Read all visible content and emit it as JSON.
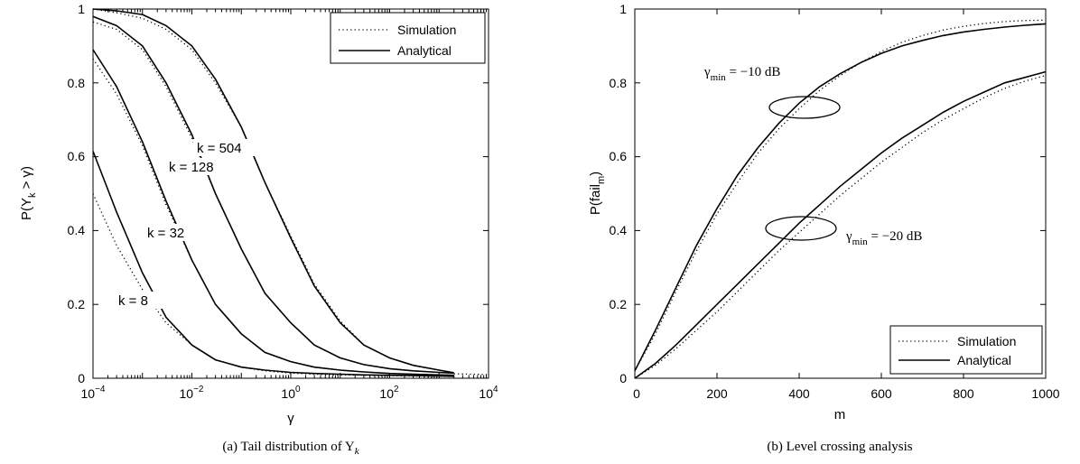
{
  "chart_data": [
    {
      "type": "line",
      "xscale": "log",
      "xlim": [
        0.0001,
        10000
      ],
      "ylim": [
        0,
        1
      ],
      "xlabel": "γ",
      "ylabel": "P(Y_k > γ)",
      "ylabel_parts": {
        "pre": "P(Y",
        "sub": "k",
        "post": " > γ)"
      },
      "x_ticks": [
        {
          "base": "10",
          "exp": "−4"
        },
        {
          "base": "10",
          "exp": "−2"
        },
        {
          "base": "10",
          "exp": "0"
        },
        {
          "base": "10",
          "exp": "2"
        },
        {
          "base": "10",
          "exp": "4"
        }
      ],
      "y_ticks": [
        "0",
        "0.2",
        "0.4",
        "0.6",
        "0.8",
        "1"
      ],
      "caption": "(a) Tail distribution of Y",
      "caption_sub": "k",
      "legend": {
        "position": "top-right",
        "entries": [
          "Simulation",
          "Analytical"
        ]
      },
      "series": [
        {
          "label": "k = 8",
          "x": [
            0.0001,
            0.0003,
            0.001,
            0.003,
            0.01,
            0.03,
            0.1,
            0.3,
            1,
            3,
            10,
            30,
            100,
            300,
            1000,
            2000
          ],
          "analytical": [
            0.615,
            0.45,
            0.285,
            0.165,
            0.09,
            0.05,
            0.03,
            0.022,
            0.016,
            0.013,
            0.011,
            0.009,
            0.008,
            0.007,
            0.006,
            0.005
          ],
          "simulation": [
            0.5,
            0.36,
            0.24,
            0.15,
            0.09,
            0.05,
            0.03,
            0.02,
            0.014,
            0.011,
            0.009,
            0.008,
            0.007,
            0.006,
            0.005,
            0.005
          ]
        },
        {
          "label": "k = 32",
          "x": [
            0.0001,
            0.0003,
            0.001,
            0.003,
            0.01,
            0.03,
            0.1,
            0.3,
            1,
            3,
            10,
            30,
            100,
            300,
            1000,
            2000
          ],
          "analytical": [
            0.89,
            0.79,
            0.64,
            0.48,
            0.32,
            0.2,
            0.12,
            0.07,
            0.045,
            0.03,
            0.022,
            0.017,
            0.013,
            0.011,
            0.009,
            0.008
          ],
          "simulation": [
            0.865,
            0.77,
            0.63,
            0.47,
            0.32,
            0.2,
            0.12,
            0.07,
            0.045,
            0.03,
            0.022,
            0.017,
            0.013,
            0.011,
            0.009,
            0.008
          ]
        },
        {
          "label": "k = 128",
          "x": [
            0.0001,
            0.0003,
            0.001,
            0.003,
            0.01,
            0.03,
            0.1,
            0.3,
            1,
            3,
            10,
            30,
            100,
            300,
            1000,
            2000
          ],
          "analytical": [
            0.98,
            0.955,
            0.9,
            0.8,
            0.66,
            0.5,
            0.35,
            0.23,
            0.15,
            0.09,
            0.055,
            0.037,
            0.026,
            0.02,
            0.016,
            0.014
          ],
          "simulation": [
            0.965,
            0.945,
            0.89,
            0.79,
            0.65,
            0.5,
            0.35,
            0.23,
            0.15,
            0.09,
            0.055,
            0.037,
            0.026,
            0.02,
            0.016,
            0.014
          ]
        },
        {
          "label": "k = 504",
          "x": [
            0.0001,
            0.0003,
            0.001,
            0.003,
            0.01,
            0.03,
            0.1,
            0.3,
            1,
            3,
            10,
            30,
            100,
            300,
            1000,
            2000
          ],
          "analytical": [
            1.0,
            0.995,
            0.985,
            0.955,
            0.9,
            0.81,
            0.68,
            0.53,
            0.38,
            0.25,
            0.15,
            0.09,
            0.055,
            0.035,
            0.022,
            0.015
          ],
          "simulation": [
            1.0,
            0.99,
            0.975,
            0.945,
            0.89,
            0.8,
            0.68,
            0.53,
            0.385,
            0.255,
            0.155,
            0.09,
            0.055,
            0.035,
            0.022,
            0.015
          ]
        }
      ],
      "simulation_tail": {
        "x": [
          2000,
          10000
        ],
        "y": [
          0.012,
          0.01
        ]
      }
    },
    {
      "type": "line",
      "xlim": [
        0,
        1000
      ],
      "ylim": [
        0,
        1
      ],
      "xlabel": "m",
      "ylabel": "P(fail_m)",
      "ylabel_parts": {
        "pre": "P(fail",
        "sub": "m",
        "post": ")"
      },
      "x_ticks": [
        "0",
        "200",
        "400",
        "600",
        "800",
        "1000"
      ],
      "y_ticks": [
        "0",
        "0.2",
        "0.4",
        "0.6",
        "0.8",
        "1"
      ],
      "caption": "(b) Level crossing analysis",
      "legend": {
        "position": "bottom-right",
        "entries": [
          "Simulation",
          "Analytical"
        ]
      },
      "annotations": [
        {
          "pre": "γ",
          "sub": "min",
          "post": " = −10 dB"
        },
        {
          "pre": "γ",
          "sub": "min",
          "post": " = −20 dB"
        }
      ],
      "series": [
        {
          "name": "γmin = −10 dB",
          "x": [
            0,
            50,
            100,
            150,
            200,
            250,
            300,
            350,
            400,
            450,
            500,
            550,
            600,
            650,
            700,
            750,
            800,
            850,
            900,
            950,
            1000
          ],
          "analytical": [
            0.02,
            0.13,
            0.245,
            0.36,
            0.46,
            0.55,
            0.625,
            0.69,
            0.745,
            0.79,
            0.825,
            0.855,
            0.88,
            0.9,
            0.915,
            0.928,
            0.938,
            0.945,
            0.951,
            0.956,
            0.96
          ],
          "simulation": [
            0.02,
            0.12,
            0.235,
            0.345,
            0.445,
            0.53,
            0.61,
            0.675,
            0.73,
            0.78,
            0.82,
            0.855,
            0.885,
            0.91,
            0.928,
            0.943,
            0.953,
            0.961,
            0.966,
            0.969,
            0.97
          ]
        },
        {
          "name": "γmin = −20 dB",
          "x": [
            0,
            50,
            100,
            150,
            200,
            250,
            300,
            350,
            400,
            450,
            500,
            550,
            600,
            650,
            700,
            750,
            800,
            850,
            900,
            950,
            1000
          ],
          "analytical": [
            0.0,
            0.04,
            0.09,
            0.145,
            0.2,
            0.255,
            0.31,
            0.365,
            0.42,
            0.47,
            0.52,
            0.565,
            0.61,
            0.65,
            0.685,
            0.72,
            0.75,
            0.775,
            0.8,
            0.815,
            0.83
          ],
          "simulation": [
            0.0,
            0.035,
            0.08,
            0.13,
            0.18,
            0.235,
            0.29,
            0.345,
            0.395,
            0.445,
            0.495,
            0.54,
            0.585,
            0.625,
            0.665,
            0.7,
            0.73,
            0.76,
            0.785,
            0.805,
            0.82
          ]
        }
      ]
    }
  ]
}
